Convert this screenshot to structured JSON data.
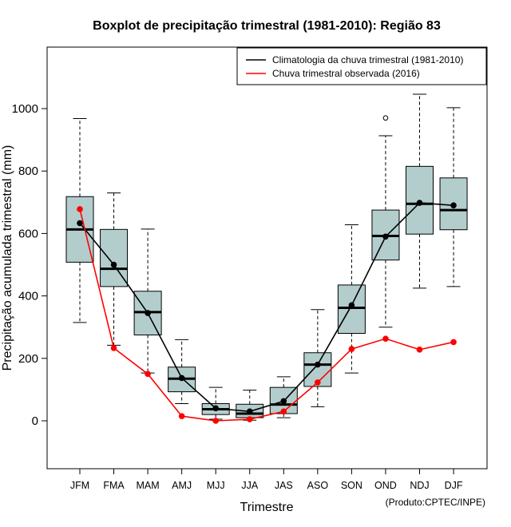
{
  "chart_data": {
    "type": "boxplot",
    "title": "Boxplot de precipitação trimestral (1981-2010): Região 83",
    "xlabel": "Trimestre",
    "ylabel": "Precipitação acumulada trimestral (mm)",
    "ylim": [
      -150,
      1180
    ],
    "yticks": [
      0,
      200,
      400,
      600,
      800,
      1000
    ],
    "categories": [
      "JFM",
      "FMA",
      "MAM",
      "AMJ",
      "MJJ",
      "JJA",
      "JAS",
      "ASO",
      "SON",
      "OND",
      "NDJ",
      "DJF"
    ],
    "boxes": [
      {
        "whisker_low": 315,
        "q1": 508,
        "median": 613,
        "q3": 718,
        "whisker_high": 968
      },
      {
        "whisker_low": 242,
        "q1": 430,
        "median": 487,
        "q3": 613,
        "whisker_high": 730
      },
      {
        "whisker_low": 153,
        "q1": 275,
        "median": 348,
        "q3": 415,
        "whisker_high": 614
      },
      {
        "whisker_low": 55,
        "q1": 93,
        "median": 135,
        "q3": 172,
        "whisker_high": 260
      },
      {
        "whisker_low": 5,
        "q1": 20,
        "median": 37,
        "q3": 55,
        "whisker_high": 107
      },
      {
        "whisker_low": 2,
        "q1": 10,
        "median": 23,
        "q3": 53,
        "whisker_high": 98
      },
      {
        "whisker_low": 10,
        "q1": 23,
        "median": 52,
        "q3": 107,
        "whisker_high": 141
      },
      {
        "whisker_low": 45,
        "q1": 110,
        "median": 180,
        "q3": 218,
        "whisker_high": 356
      },
      {
        "whisker_low": 153,
        "q1": 280,
        "median": 362,
        "q3": 435,
        "whisker_high": 628
      },
      {
        "whisker_low": 300,
        "q1": 515,
        "median": 592,
        "q3": 675,
        "whisker_high": 913
      },
      {
        "whisker_low": 425,
        "q1": 598,
        "median": 695,
        "q3": 815,
        "whisker_high": 1046
      },
      {
        "whisker_low": 430,
        "q1": 612,
        "median": 675,
        "q3": 778,
        "whisker_high": 1003
      }
    ],
    "outliers": [
      {
        "category": "OND",
        "value": 970
      }
    ],
    "series": [
      {
        "name": "Climatologia da chuva trimestral (1981-2010)",
        "color": "#000000",
        "values": [
          633,
          500,
          345,
          137,
          40,
          30,
          63,
          180,
          370,
          590,
          698,
          690
        ]
      },
      {
        "name": "Chuva trimestral observada (2016)",
        "color": "#ff0000",
        "values": [
          678,
          233,
          150,
          15,
          0,
          5,
          30,
          123,
          230,
          263,
          228,
          252
        ]
      }
    ],
    "legend_position": "top-right",
    "box_fill": "#b3cdcd",
    "credit": "(Produto:CPTEC/INPE)"
  }
}
